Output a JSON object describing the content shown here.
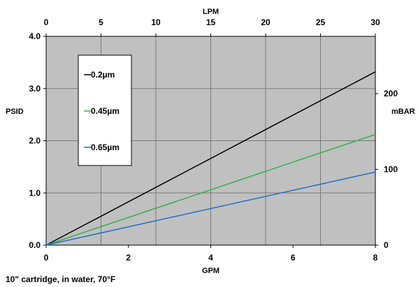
{
  "chart_data": {
    "type": "line",
    "bottom_axis": {
      "label": "GPM",
      "range": [
        0,
        8
      ],
      "ticks": [
        0,
        2,
        4,
        6,
        8
      ]
    },
    "top_axis": {
      "label": "LPM",
      "range": [
        0,
        30
      ],
      "ticks": [
        0,
        5,
        10,
        15,
        20,
        25,
        30
      ]
    },
    "left_axis": {
      "label": "PSID",
      "range": [
        0,
        4
      ],
      "ticks": [
        "0.0",
        "1.0",
        "2.0",
        "3.0",
        "4.0"
      ]
    },
    "right_axis": {
      "label": "mBAR",
      "ticks": [
        0,
        100,
        200
      ]
    },
    "series": [
      {
        "name": "0.2µm",
        "color": "#000000",
        "x": [
          0,
          8
        ],
        "y": [
          0,
          3.32
        ]
      },
      {
        "name": "0.45µm",
        "color": "#2fb24a",
        "x": [
          0,
          8
        ],
        "y": [
          0,
          2.12
        ]
      },
      {
        "name": "0.65µm",
        "color": "#1f6fd0",
        "x": [
          0,
          8
        ],
        "y": [
          0,
          1.4
        ]
      }
    ],
    "grid": true,
    "plot_background": "#c0c0c0",
    "legend_placement": "upper-left",
    "footnote": "10\" cartridge, in water, 70°F"
  }
}
